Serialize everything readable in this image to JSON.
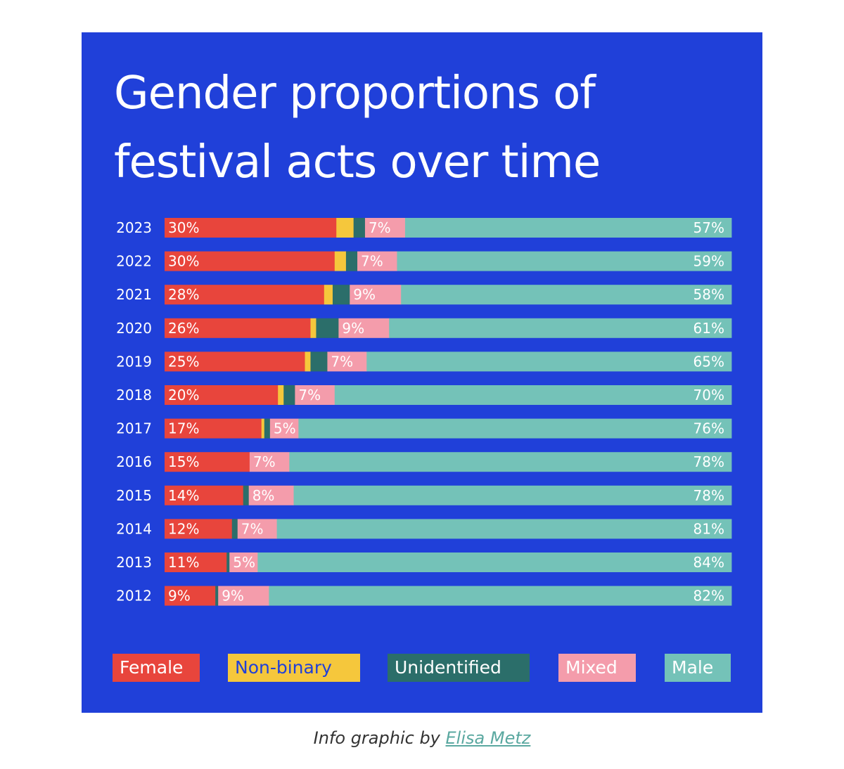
{
  "title": "Gender proportions of festival acts over time",
  "chart_data": {
    "type": "bar",
    "orientation": "horizontal-stacked-100",
    "title": "Gender proportions of festival acts over time",
    "categories": [
      "2023",
      "2022",
      "2021",
      "2020",
      "2019",
      "2018",
      "2017",
      "2016",
      "2015",
      "2014",
      "2013",
      "2012"
    ],
    "series": [
      {
        "name": "Female",
        "color": "#e8453c",
        "values": [
          30,
          30,
          28,
          26,
          25,
          20,
          17,
          15,
          14,
          12,
          11,
          9
        ],
        "labeled": true
      },
      {
        "name": "Non-binary",
        "color": "#f5c73c",
        "values": [
          3,
          2,
          1.5,
          1,
          1,
          1,
          0.5,
          0,
          0,
          0,
          0,
          0
        ],
        "labeled": false
      },
      {
        "name": "Unidentified",
        "color": "#2b6e6a",
        "values": [
          2,
          2,
          3,
          4,
          3,
          2,
          1,
          0,
          1,
          1,
          0.5,
          0.5
        ],
        "labeled": false
      },
      {
        "name": "Mixed",
        "color": "#f49cab",
        "values": [
          7,
          7,
          9,
          9,
          7,
          7,
          5,
          7,
          8,
          7,
          5,
          9
        ],
        "labeled": true
      },
      {
        "name": "Male",
        "color": "#74c2b8",
        "values": [
          57,
          59,
          58,
          61,
          65,
          70,
          76,
          78,
          78,
          81,
          84,
          82
        ],
        "labeled": true
      }
    ],
    "xlim": [
      0,
      100
    ]
  },
  "labels": {
    "Female": [
      "30%",
      "30%",
      "28%",
      "26%",
      "25%",
      "20%",
      "17%",
      "15%",
      "14%",
      "12%",
      "11%",
      "9%"
    ],
    "Mixed": [
      "7%",
      "7%",
      "9%",
      "9%",
      "7%",
      "7%",
      "5%",
      "7%",
      "8%",
      "7%",
      "5%",
      "9%"
    ],
    "Male": [
      "57%",
      "59%",
      "58%",
      "61%",
      "65%",
      "70%",
      "76%",
      "78%",
      "78%",
      "81%",
      "84%",
      "82%"
    ]
  },
  "legend": [
    {
      "label": "Female",
      "bg": "#e8453c",
      "fg": "#ffffff"
    },
    {
      "label": "Non-binary",
      "bg": "#f5c73c",
      "fg": "#2040d9"
    },
    {
      "label": "Unidentified",
      "bg": "#2b6e6a",
      "fg": "#ffffff"
    },
    {
      "label": "Mixed",
      "bg": "#f49cab",
      "fg": "#ffffff"
    },
    {
      "label": "Male",
      "bg": "#74c2b8",
      "fg": "#ffffff"
    }
  ],
  "caption": {
    "prefix": "Info graphic by ",
    "author": "Elisa Metz"
  }
}
